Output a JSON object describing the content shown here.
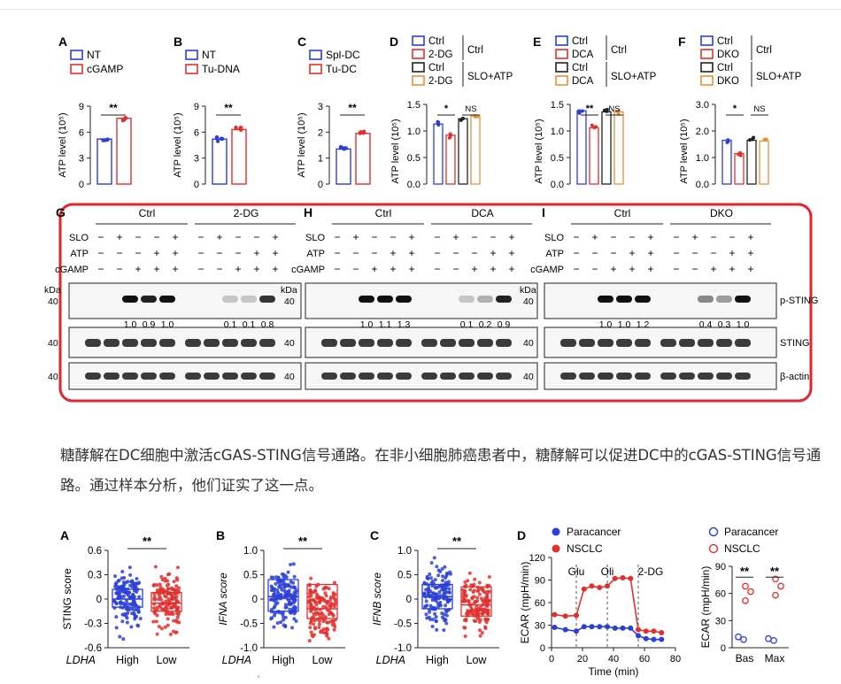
{
  "caption": "糖酵解在DC细胞中激活cGAS-STING信号通路。在非小细胞肺癌患者中，糖酵解可以促进DC中的cGAS-STING信号通路。通过样本分析，他们证实了这一点。",
  "colors": {
    "blue": "#2b3fd6",
    "red": "#e0312f",
    "black": "#222222",
    "orange": "#e8913a",
    "purple": "#9a37a8",
    "frame": "#e0262a"
  },
  "footer_mark": "ʿ",
  "top_panels": [
    {
      "letter": "A",
      "legend": [
        "NT",
        "cGAMP"
      ],
      "ylabel": "ATP level (10⁵)",
      "yticks": [
        "0",
        "3",
        "6",
        "9"
      ],
      "sig": [
        "**"
      ]
    },
    {
      "letter": "B",
      "legend": [
        "NT",
        "Tu-DNA"
      ],
      "ylabel": "ATP level (10⁵)",
      "yticks": [
        "0",
        "3",
        "6",
        "9"
      ],
      "sig": [
        "**"
      ]
    },
    {
      "letter": "C",
      "legend": [
        "Spl-DC",
        "Tu-DC"
      ],
      "ylabel": "ATP level (10⁵)",
      "yticks": [
        "0",
        "1",
        "2",
        "3"
      ],
      "sig": [
        "**"
      ]
    },
    {
      "letter": "D",
      "legend": [
        "Ctrl",
        "2-DG",
        "Ctrl",
        "2-DG"
      ],
      "group_labels": [
        "Ctrl",
        "SLO+ATP"
      ],
      "ylabel": "ATP level (10⁵)",
      "yticks": [
        "0.0",
        "0.5",
        "1.0",
        "1.5"
      ],
      "sig": [
        "*",
        "NS"
      ]
    },
    {
      "letter": "E",
      "legend": [
        "Ctrl",
        "DCA",
        "Ctrl",
        "DCA"
      ],
      "group_labels": [
        "Ctrl",
        "SLO+ATP"
      ],
      "ylabel": "ATP level (10⁵)",
      "yticks": [
        "0.0",
        "0.5",
        "1.0",
        "1.5"
      ],
      "sig": [
        "**",
        "NS"
      ]
    },
    {
      "letter": "F",
      "legend": [
        "Ctrl",
        "DKO",
        "Ctrl",
        "DKO"
      ],
      "group_labels": [
        "Ctrl",
        "SLO+ATP"
      ],
      "ylabel": "ATP level (10⁵)",
      "yticks": [
        "0.0",
        "1.0",
        "2.0",
        "3.0"
      ],
      "sig": [
        "*",
        "NS"
      ]
    }
  ],
  "blots": [
    {
      "letter": "G",
      "groups": [
        "Ctrl",
        "2-DG"
      ],
      "quant": [
        "1.0",
        "0.9",
        "1.0",
        "0.1",
        "0.1",
        "0.8"
      ]
    },
    {
      "letter": "H",
      "groups": [
        "Ctrl",
        "DCA"
      ],
      "quant": [
        "1.0",
        "1.1",
        "1.3",
        "0.1",
        "0.2",
        "0.9"
      ]
    },
    {
      "letter": "I",
      "groups": [
        "Ctrl",
        "DKO"
      ],
      "quant": [
        "1.0",
        "1.0",
        "1.2",
        "0.4",
        "0.3",
        "1.0"
      ]
    }
  ],
  "blot_rows": [
    "SLO",
    "ATP",
    "cGAMP"
  ],
  "blot_signs": {
    "SLO": [
      "−",
      "+",
      "−",
      "−",
      "+",
      "−",
      "+",
      "−",
      "−",
      "+"
    ],
    "ATP": [
      "−",
      "−",
      "−",
      "+",
      "+",
      "−",
      "−",
      "−",
      "+",
      "+"
    ],
    "cGAMP": [
      "−",
      "−",
      "+",
      "+",
      "+",
      "−",
      "−",
      "+",
      "+",
      "+"
    ]
  },
  "kda_label": "kDa",
  "mw_marker": "40",
  "band_labels": [
    "p-STING",
    "STING",
    "β-actin"
  ],
  "chart_data": [
    {
      "type": "bar",
      "panel": "A",
      "ylabel": "ATP level (10⁵)",
      "ylim": [
        0,
        9
      ],
      "categories": [
        "NT",
        "cGAMP"
      ],
      "values": [
        5.2,
        7.6
      ],
      "sig": "**"
    },
    {
      "type": "bar",
      "panel": "B",
      "ylabel": "ATP level (10⁵)",
      "ylim": [
        0,
        9
      ],
      "categories": [
        "NT",
        "Tu-DNA"
      ],
      "values": [
        5.2,
        6.3
      ],
      "sig": "**"
    },
    {
      "type": "bar",
      "panel": "C",
      "ylabel": "ATP level (10⁵)",
      "ylim": [
        0,
        3
      ],
      "categories": [
        "Spl-DC",
        "Tu-DC"
      ],
      "values": [
        1.35,
        1.95
      ],
      "sig": "**"
    },
    {
      "type": "bar",
      "panel": "D",
      "ylabel": "ATP level (10⁵)",
      "ylim": [
        0,
        1.5
      ],
      "categories": [
        "Ctrl",
        "2-DG",
        "Ctrl",
        "2-DG"
      ],
      "groups": [
        "Ctrl",
        "SLO+ATP"
      ],
      "values": [
        1.13,
        0.92,
        1.23,
        1.28
      ],
      "sig": [
        "*",
        "NS"
      ]
    },
    {
      "type": "bar",
      "panel": "E",
      "ylabel": "ATP level (10⁵)",
      "ylim": [
        0,
        1.5
      ],
      "categories": [
        "Ctrl",
        "DCA",
        "Ctrl",
        "DCA"
      ],
      "groups": [
        "Ctrl",
        "SLO+ATP"
      ],
      "values": [
        1.38,
        1.06,
        1.36,
        1.36
      ],
      "sig": [
        "**",
        "NS"
      ]
    },
    {
      "type": "bar",
      "panel": "F",
      "ylabel": "ATP level (10⁵)",
      "ylim": [
        0,
        3.0
      ],
      "categories": [
        "Ctrl",
        "DKO",
        "Ctrl",
        "DKO"
      ],
      "groups": [
        "Ctrl",
        "SLO+ATP"
      ],
      "values": [
        1.65,
        1.15,
        1.65,
        1.62
      ],
      "sig": [
        "*",
        "NS"
      ]
    },
    {
      "type": "scatter",
      "panel": "A",
      "ylabel": "STING score",
      "ylim": [
        -0.6,
        0.6
      ],
      "yticks": [
        "0.6",
        "0.3",
        "0",
        "-0.3",
        "-0.6"
      ],
      "group_label": "LDHA",
      "categories": [
        "High",
        "Low"
      ],
      "median": [
        0.0,
        -0.05
      ],
      "q1": [
        -0.1,
        -0.15
      ],
      "q3": [
        0.12,
        0.08
      ],
      "sig": "**"
    },
    {
      "type": "scatter",
      "panel": "B",
      "ylabel": "IFNA score",
      "ylim": [
        -1.0,
        1.0
      ],
      "yticks": [
        "1.0",
        "0.5",
        "0",
        "-0.5",
        "-1.0"
      ],
      "group_label": "LDHA",
      "categories": [
        "High",
        "Low"
      ],
      "median": [
        0.05,
        -0.2
      ],
      "q1": [
        -0.25,
        -0.4
      ],
      "q3": [
        0.4,
        0.3
      ],
      "sig": "**"
    },
    {
      "type": "scatter",
      "panel": "C",
      "ylabel": "IFNB score",
      "ylim": [
        -1.0,
        1.0
      ],
      "yticks": [
        "1.0",
        "0.5",
        "0",
        "-0.5",
        "-1.0"
      ],
      "group_label": "LDHA",
      "categories": [
        "High",
        "Low"
      ],
      "median": [
        0.05,
        -0.12
      ],
      "q1": [
        -0.2,
        -0.35
      ],
      "q3": [
        0.3,
        0.25
      ],
      "sig": "**"
    },
    {
      "type": "line",
      "panel": "D",
      "ylabel": "ECAR (mpH/min)",
      "xlabel": "Time (min)",
      "xlim": [
        0,
        80
      ],
      "ylim": [
        0,
        120
      ],
      "xticks": [
        "0",
        "20",
        "40",
        "60",
        "80"
      ],
      "yticks": [
        "0",
        "30",
        "60",
        "90",
        "120"
      ],
      "injections": [
        {
          "label": "Glu",
          "x": 16
        },
        {
          "label": "Oli",
          "x": 36
        },
        {
          "label": "2-DG",
          "x": 56
        }
      ],
      "x": [
        2,
        9,
        16,
        21,
        26,
        31,
        36,
        41,
        46,
        51,
        56,
        61,
        66,
        71
      ],
      "series": [
        {
          "name": "Paracancer",
          "values": [
            27,
            24,
            22,
            28,
            28,
            28,
            28,
            26,
            26,
            26,
            16,
            12,
            11,
            11
          ]
        },
        {
          "name": "NSCLC",
          "values": [
            44,
            42,
            43,
            78,
            82,
            80,
            82,
            92,
            93,
            92,
            24,
            22,
            22,
            20
          ]
        }
      ]
    },
    {
      "type": "scatter",
      "panel": "D-right",
      "ylabel": "ECAR (mpH/min)",
      "ylim": [
        0,
        90
      ],
      "yticks": [
        "0",
        "30",
        "60",
        "90"
      ],
      "categories": [
        "Bas",
        "Max"
      ],
      "sig": [
        "**",
        "**"
      ],
      "series": [
        {
          "name": "Paracancer",
          "values": [
            [
              12,
              9
            ],
            [
              10,
              8
            ]
          ]
        },
        {
          "name": "NSCLC",
          "values": [
            [
              52,
              62,
              68
            ],
            [
              58,
              68,
              76
            ]
          ]
        }
      ]
    }
  ]
}
